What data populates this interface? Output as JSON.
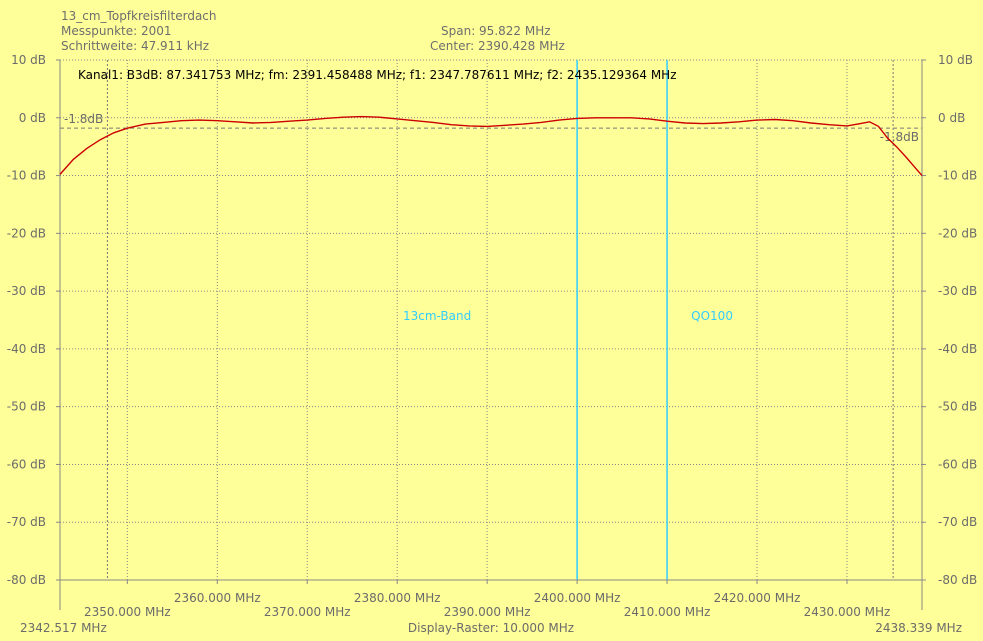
{
  "header": {
    "title": "13_cm_Topfkreisfilterdach",
    "points": "Messpunkte: 2001",
    "step": "Schrittweite: 47.911 kHz",
    "span": "Span: 95.822 MHz",
    "center": "Center: 2390.428 MHz"
  },
  "chart_data": {
    "type": "line",
    "annotation": "Kanal1: B3dB: 87.341753 MHz; fm: 2391.458488 MHz; f1: 2347.787611 MHz; f2: 2435.129364 MHz",
    "xlim": [
      2342.517,
      2438.339
    ],
    "ylim": [
      -80,
      10
    ],
    "x_start_label": "2342.517 MHz",
    "x_end_label": "2438.339 MHz",
    "x_ticks": [
      2350,
      2360,
      2370,
      2380,
      2390,
      2400,
      2410,
      2420,
      2430
    ],
    "x_tick_labels": [
      "2350.000 MHz",
      "2360.000 MHz",
      "2370.000 MHz",
      "2380.000 MHz",
      "2390.000 MHz",
      "2400.000 MHz",
      "2410.000 MHz",
      "2420.000 MHz",
      "2430.000 MHz"
    ],
    "y_ticks": [
      10,
      0,
      -10,
      -20,
      -30,
      -40,
      -50,
      -60,
      -70,
      -80
    ],
    "y_tick_labels": [
      "10 dB",
      "0 dB",
      "-10 dB",
      "-20 dB",
      "-30 dB",
      "-40 dB",
      "-50 dB",
      "-60 dB",
      "-70 dB",
      "-80 dB"
    ],
    "grid": true,
    "raster_label": "Display-Raster: 10.000 MHz",
    "reference_level": -1.8,
    "reference_label": "-1.8dB",
    "marker_freqs": [
      2347.787611,
      2435.129364
    ],
    "band_markers": [
      {
        "freq": 2400.0,
        "label": "13cm-Band"
      },
      {
        "freq": 2410.0,
        "label": "QO100"
      }
    ],
    "series": [
      {
        "x": [
          2342.517,
          2344,
          2345.5,
          2347,
          2348.5,
          2350,
          2352,
          2354,
          2356,
          2358,
          2360,
          2362,
          2364,
          2366,
          2368,
          2370,
          2372,
          2374,
          2376,
          2378,
          2380,
          2382,
          2384,
          2386,
          2388,
          2390,
          2392,
          2394,
          2396,
          2398,
          2400,
          2402,
          2404,
          2406,
          2408,
          2410,
          2412,
          2414,
          2416,
          2418,
          2420,
          2422,
          2424,
          2426,
          2428,
          2430,
          2431.5,
          2432.5,
          2433.5,
          2434.5,
          2435.5,
          2436.5,
          2437.5,
          2438.339
        ],
        "y": [
          -9.8,
          -7.2,
          -5.3,
          -3.8,
          -2.6,
          -1.8,
          -1.1,
          -0.8,
          -0.5,
          -0.4,
          -0.5,
          -0.7,
          -0.9,
          -0.8,
          -0.6,
          -0.4,
          -0.1,
          0.1,
          0.2,
          0.1,
          -0.2,
          -0.5,
          -0.8,
          -1.2,
          -1.4,
          -1.5,
          -1.3,
          -1.1,
          -0.8,
          -0.4,
          -0.1,
          0.0,
          0.0,
          0.0,
          -0.2,
          -0.6,
          -0.9,
          -1.0,
          -0.9,
          -0.7,
          -0.4,
          -0.3,
          -0.5,
          -0.9,
          -1.2,
          -1.4,
          -1.0,
          -0.7,
          -1.5,
          -3.5,
          -5.0,
          -6.7,
          -8.5,
          -10.0
        ],
        "color": "#cc0000"
      }
    ],
    "colors": {
      "background": "#ffff99",
      "trace": "#cc0000",
      "band": "#33ccff",
      "grid": "#888888",
      "text": "#6b6b6b",
      "annotation": "#000000"
    }
  }
}
